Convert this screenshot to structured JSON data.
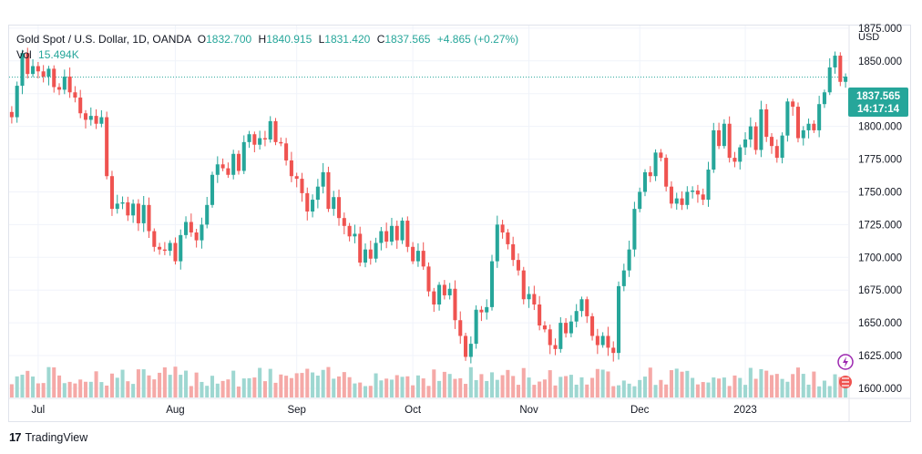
{
  "header": {
    "symbol": "Gold Spot / U.S. Dollar, 1D, OANDA",
    "open_label": "O",
    "open": "1832.700",
    "high_label": "H",
    "high": "1840.915",
    "low_label": "L",
    "low": "1831.420",
    "close_label": "C",
    "close": "1837.565",
    "change": "+4.865 (+0.27%)",
    "vol_label": "Vol",
    "vol": "15.494K"
  },
  "price_tag": {
    "price": "1837.565",
    "countdown": "14:17:14"
  },
  "footer": {
    "brand": "TradingView"
  },
  "colors": {
    "up": "#26a69a",
    "down": "#ef5350",
    "vol_up": "#9ed7d1",
    "vol_down": "#f5a9a7",
    "grid": "#f0f3fa"
  },
  "chart_data": {
    "type": "candlestick",
    "currency": "USD",
    "y_ticks": [
      "1875.000",
      "1850.000",
      "1825.000",
      "1800.000",
      "1775.000",
      "1750.000",
      "1725.000",
      "1700.000",
      "1675.000",
      "1650.000",
      "1625.000",
      "1600.000"
    ],
    "ylim": [
      1593,
      1877
    ],
    "x_ticks": [
      "Jul",
      "Aug",
      "Sep",
      "Oct",
      "Nov",
      "Dec",
      "2023"
    ],
    "last_price": 1837.565,
    "closes": [
      1807,
      1831,
      1856,
      1840,
      1846,
      1842,
      1838,
      1844,
      1830,
      1828,
      1838,
      1826,
      1822,
      1810,
      1805,
      1808,
      1802,
      1807,
      1762,
      1737,
      1741,
      1742,
      1732,
      1741,
      1726,
      1740,
      1720,
      1708,
      1706,
      1705,
      1711,
      1697,
      1717,
      1727,
      1719,
      1713,
      1725,
      1740,
      1763,
      1771,
      1768,
      1763,
      1779,
      1766,
      1788,
      1794,
      1786,
      1791,
      1790,
      1804,
      1788,
      1787,
      1774,
      1762,
      1760,
      1749,
      1735,
      1744,
      1754,
      1765,
      1737,
      1746,
      1730,
      1724,
      1716,
      1718,
      1696,
      1706,
      1699,
      1711,
      1720,
      1712,
      1724,
      1713,
      1728,
      1708,
      1697,
      1705,
      1693,
      1674,
      1664,
      1679,
      1671,
      1676,
      1652,
      1640,
      1624,
      1634,
      1660,
      1658,
      1662,
      1697,
      1725,
      1719,
      1710,
      1698,
      1690,
      1668,
      1672,
      1664,
      1648,
      1645,
      1633,
      1630,
      1650,
      1642,
      1651,
      1659,
      1668,
      1655,
      1640,
      1633,
      1640,
      1631,
      1627,
      1678,
      1690,
      1706,
      1737,
      1750,
      1765,
      1762,
      1780,
      1776,
      1754,
      1741,
      1745,
      1740,
      1750,
      1751,
      1748,
      1744,
      1767,
      1797,
      1785,
      1802,
      1776,
      1773,
      1784,
      1790,
      1800,
      1782,
      1813,
      1792,
      1785,
      1776,
      1793,
      1819,
      1815,
      1791,
      1797,
      1802,
      1797,
      1817,
      1826,
      1845,
      1854,
      1834,
      1838
    ]
  }
}
